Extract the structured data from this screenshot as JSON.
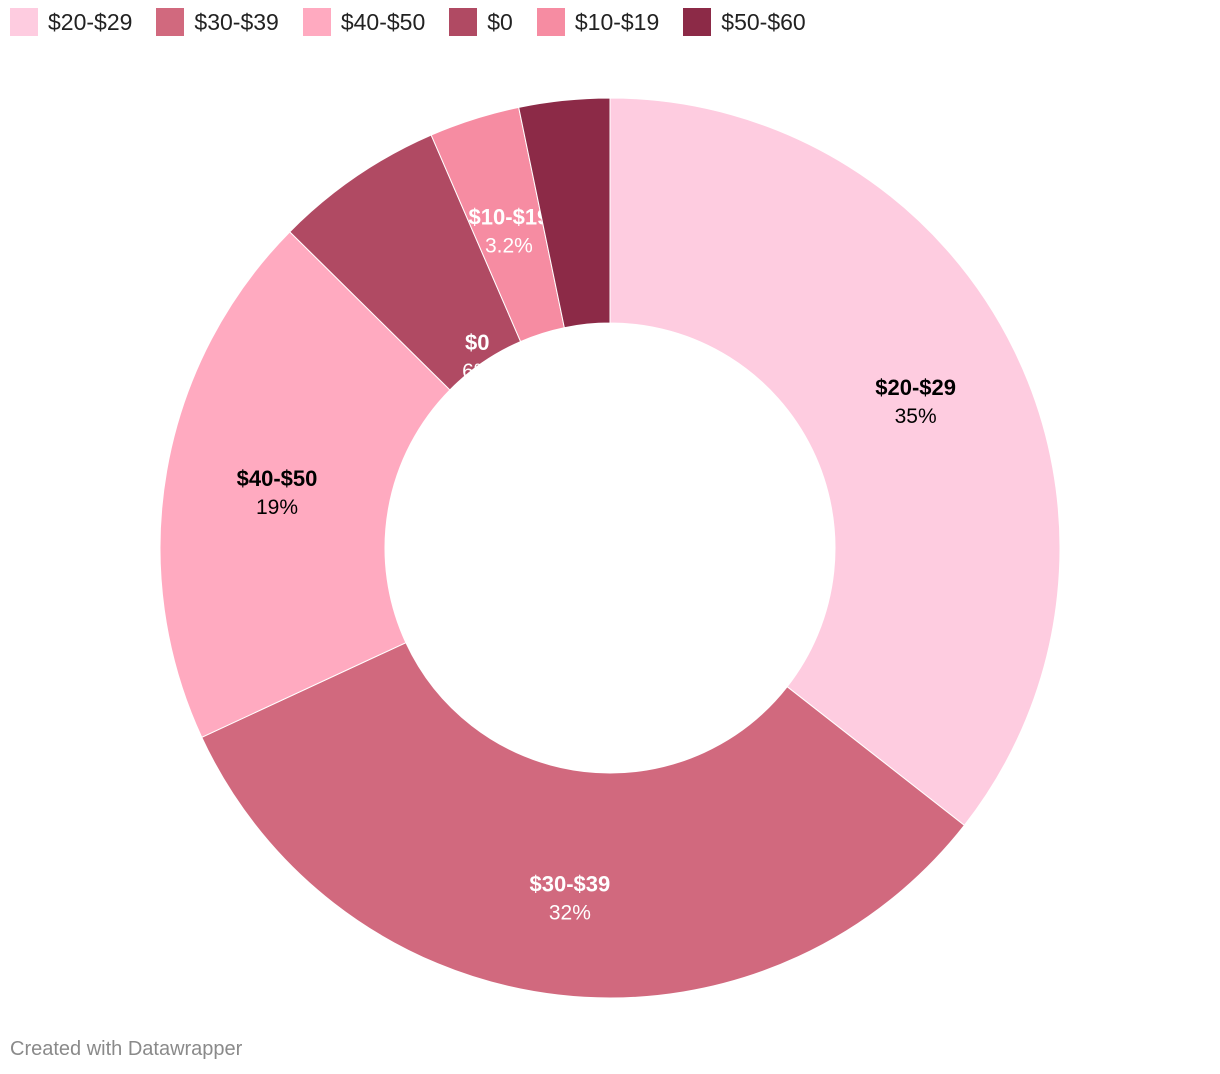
{
  "chart_data": {
    "type": "pie",
    "variant": "donut",
    "title": "",
    "legend_position": "top-left",
    "slices": [
      {
        "label": "$20-$29",
        "value": 35,
        "pct_label": "35%",
        "color": "#fecce0",
        "label_color": "#000000"
      },
      {
        "label": "$30-$39",
        "value": 32,
        "pct_label": "32%",
        "color": "#d1697e",
        "label_color": "#ffffff"
      },
      {
        "label": "$40-$50",
        "value": 19,
        "pct_label": "19%",
        "color": "#ffaac0",
        "label_color": "#000000"
      },
      {
        "label": "$0",
        "value": 6,
        "pct_label": "6%",
        "color": "#b04a63",
        "label_color": "#ffffff"
      },
      {
        "label": "$10-$19",
        "value": 3.2,
        "pct_label": "3.2%",
        "color": "#f68ca2",
        "label_color": "#ffffff"
      },
      {
        "label": "$50-$60",
        "value": 3.2,
        "pct_label": "",
        "color": "#8c2a47",
        "label_color": "#ffffff"
      }
    ]
  },
  "legend": {
    "items": [
      {
        "label": "$20-$29",
        "color": "#fecce0"
      },
      {
        "label": "$30-$39",
        "color": "#d1697e"
      },
      {
        "label": "$40-$50",
        "color": "#ffaac0"
      },
      {
        "label": "$0",
        "color": "#b04a63"
      },
      {
        "label": "$10-$19",
        "color": "#f68ca2"
      },
      {
        "label": "$50-$60",
        "color": "#8c2a47"
      }
    ]
  },
  "footer": {
    "credit": "Created with Datawrapper"
  }
}
